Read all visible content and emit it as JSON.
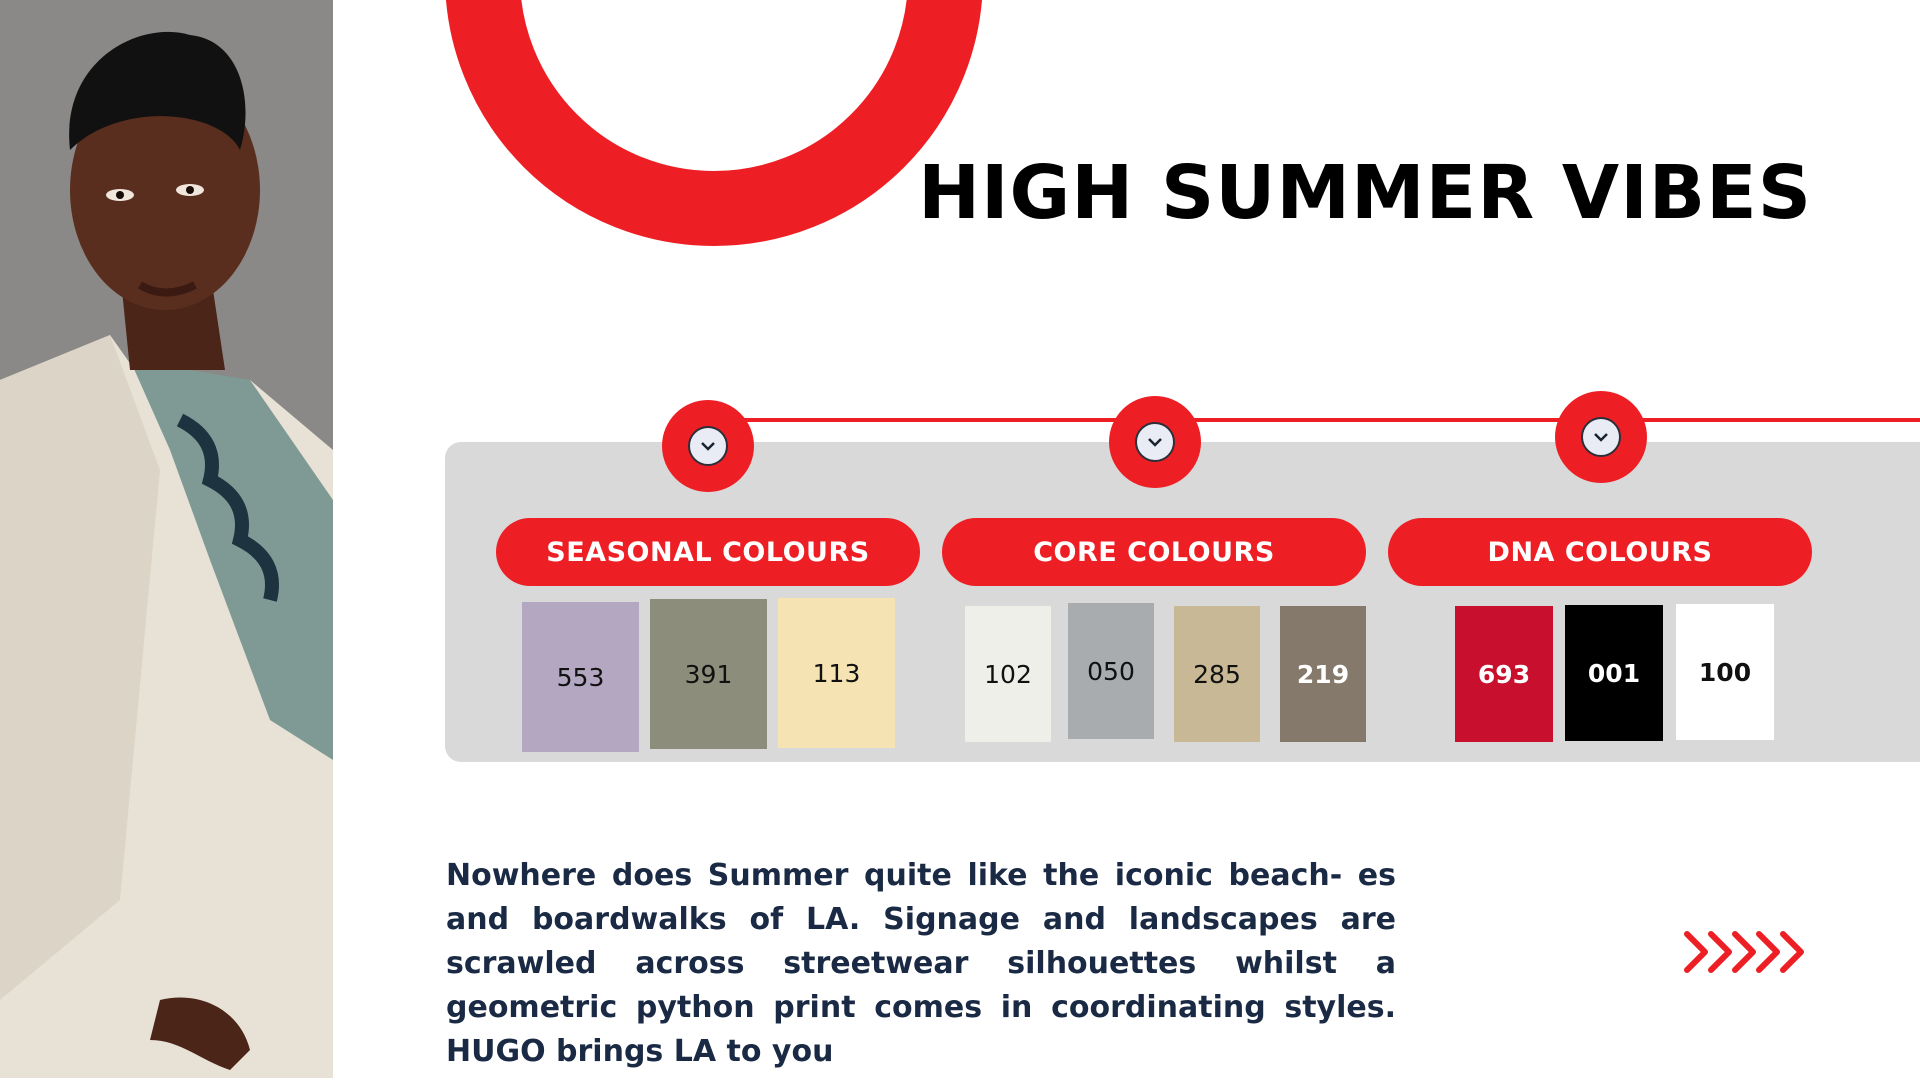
{
  "header": {
    "title": "HIGH SUMMER VIBES"
  },
  "icons": {
    "node": "chevron-down-icon",
    "arrows": "chevron-right-icon"
  },
  "colors": {
    "accent": "#ee1f24",
    "panel": "#d9d9d9",
    "text_dark": "#1b2a44"
  },
  "groups": [
    {
      "label": "SEASONAL COLOURS",
      "swatches": [
        {
          "code": "553",
          "color": "#b3a7c1"
        },
        {
          "code": "391",
          "color": "#8c8e7b"
        },
        {
          "code": "113",
          "color": "#f5e3b3"
        }
      ]
    },
    {
      "label": "CORE COLOURS",
      "swatches": [
        {
          "code": "102",
          "color": "#efefea"
        },
        {
          "code": "050",
          "color": "#a8acaf"
        },
        {
          "code": "285",
          "color": "#c8b895"
        },
        {
          "code": "219",
          "color": "#85796b"
        }
      ]
    },
    {
      "label": "DNA COLOURS",
      "swatches": [
        {
          "code": "693",
          "color": "#c8102e"
        },
        {
          "code": "001",
          "color": "#000000"
        },
        {
          "code": "100",
          "color": "#ffffff"
        }
      ]
    }
  ],
  "body_text": "Nowhere does Summer quite like the iconic beach- es and boardwalks of LA. Signage and landscapes are scrawled across streetwear silhouettes whilst a geometric python print comes in coordinating styles. HUGO brings LA to you"
}
